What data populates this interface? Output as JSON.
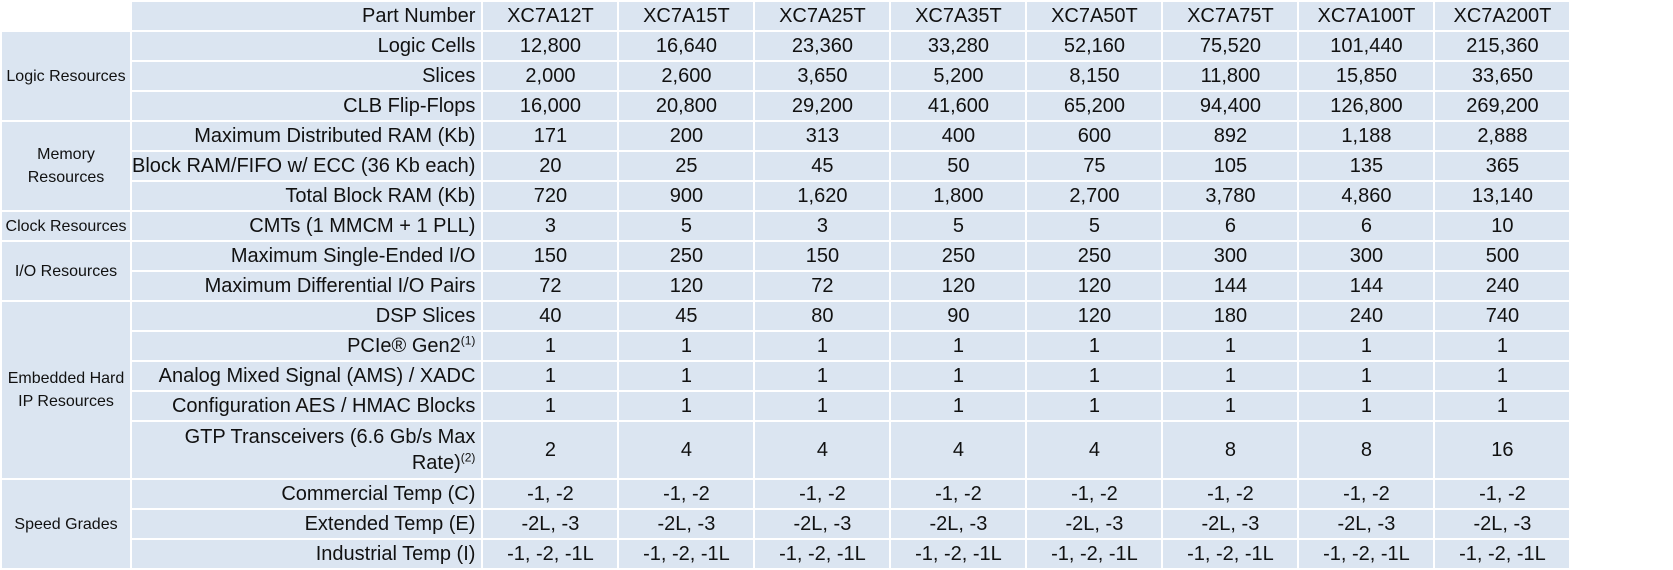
{
  "header": {
    "label": "Part Number",
    "parts": [
      "XC7A12T",
      "XC7A15T",
      "XC7A25T",
      "XC7A35T",
      "XC7A50T",
      "XC7A75T",
      "XC7A100T",
      "XC7A200T"
    ]
  },
  "groups": [
    {
      "name": "Logic Resources",
      "rows": [
        {
          "label": "Logic Cells",
          "values": [
            "12,800",
            "16,640",
            "23,360",
            "33,280",
            "52,160",
            "75,520",
            "101,440",
            "215,360"
          ]
        },
        {
          "label": "Slices",
          "values": [
            "2,000",
            "2,600",
            "3,650",
            "5,200",
            "8,150",
            "11,800",
            "15,850",
            "33,650"
          ]
        },
        {
          "label": "CLB Flip-Flops",
          "values": [
            "16,000",
            "20,800",
            "29,200",
            "41,600",
            "65,200",
            "94,400",
            "126,800",
            "269,200"
          ]
        }
      ]
    },
    {
      "name": "Memory Resources",
      "rows": [
        {
          "label": "Maximum Distributed RAM (Kb)",
          "values": [
            "171",
            "200",
            "313",
            "400",
            "600",
            "892",
            "1,188",
            "2,888"
          ]
        },
        {
          "label": "Block RAM/FIFO w/ ECC (36 Kb each)",
          "values": [
            "20",
            "25",
            "45",
            "50",
            "75",
            "105",
            "135",
            "365"
          ]
        },
        {
          "label": "Total Block RAM (Kb)",
          "values": [
            "720",
            "900",
            "1,620",
            "1,800",
            "2,700",
            "3,780",
            "4,860",
            "13,140"
          ]
        }
      ]
    },
    {
      "name": "Clock Resources",
      "rows": [
        {
          "label": "CMTs (1 MMCM + 1 PLL)",
          "values": [
            "3",
            "5",
            "3",
            "5",
            "5",
            "6",
            "6",
            "10"
          ]
        }
      ]
    },
    {
      "name": "I/O Resources",
      "rows": [
        {
          "label": "Maximum Single-Ended I/O",
          "values": [
            "150",
            "250",
            "150",
            "250",
            "250",
            "300",
            "300",
            "500"
          ]
        },
        {
          "label": "Maximum Differential I/O Pairs",
          "values": [
            "72",
            "120",
            "72",
            "120",
            "120",
            "144",
            "144",
            "240"
          ]
        }
      ]
    },
    {
      "name": "Embedded Hard IP Resources",
      "rows": [
        {
          "label": "DSP Slices",
          "values": [
            "40",
            "45",
            "80",
            "90",
            "120",
            "180",
            "240",
            "740"
          ]
        },
        {
          "label": "PCIe® Gen2",
          "sup": "(1)",
          "values": [
            "1",
            "1",
            "1",
            "1",
            "1",
            "1",
            "1",
            "1"
          ]
        },
        {
          "label": "Analog Mixed Signal (AMS) / XADC",
          "values": [
            "1",
            "1",
            "1",
            "1",
            "1",
            "1",
            "1",
            "1"
          ]
        },
        {
          "label": "Configuration AES / HMAC Blocks",
          "values": [
            "1",
            "1",
            "1",
            "1",
            "1",
            "1",
            "1",
            "1"
          ]
        },
        {
          "label": "GTP Transceivers (6.6 Gb/s Max Rate)",
          "sup": "(2)",
          "tall": true,
          "values": [
            "2",
            "4",
            "4",
            "4",
            "4",
            "8",
            "8",
            "16"
          ]
        }
      ]
    },
    {
      "name": "Speed Grades",
      "rows": [
        {
          "label": "Commercial Temp (C)",
          "values": [
            "-1, -2",
            "-1, -2",
            "-1, -2",
            "-1, -2",
            "-1, -2",
            "-1, -2",
            "-1, -2",
            "-1, -2"
          ]
        },
        {
          "label": "Extended Temp (E)",
          "values": [
            "-2L, -3",
            "-2L, -3",
            "-2L, -3",
            "-2L, -3",
            "-2L, -3",
            "-2L, -3",
            "-2L, -3",
            "-2L, -3"
          ]
        },
        {
          "label": "Industrial Temp (I)",
          "values": [
            "-1, -2, -1L",
            "-1, -2, -1L",
            "-1, -2, -1L",
            "-1, -2, -1L",
            "-1, -2, -1L",
            "-1, -2, -1L",
            "-1, -2, -1L",
            "-1, -2, -1L"
          ]
        }
      ]
    }
  ]
}
